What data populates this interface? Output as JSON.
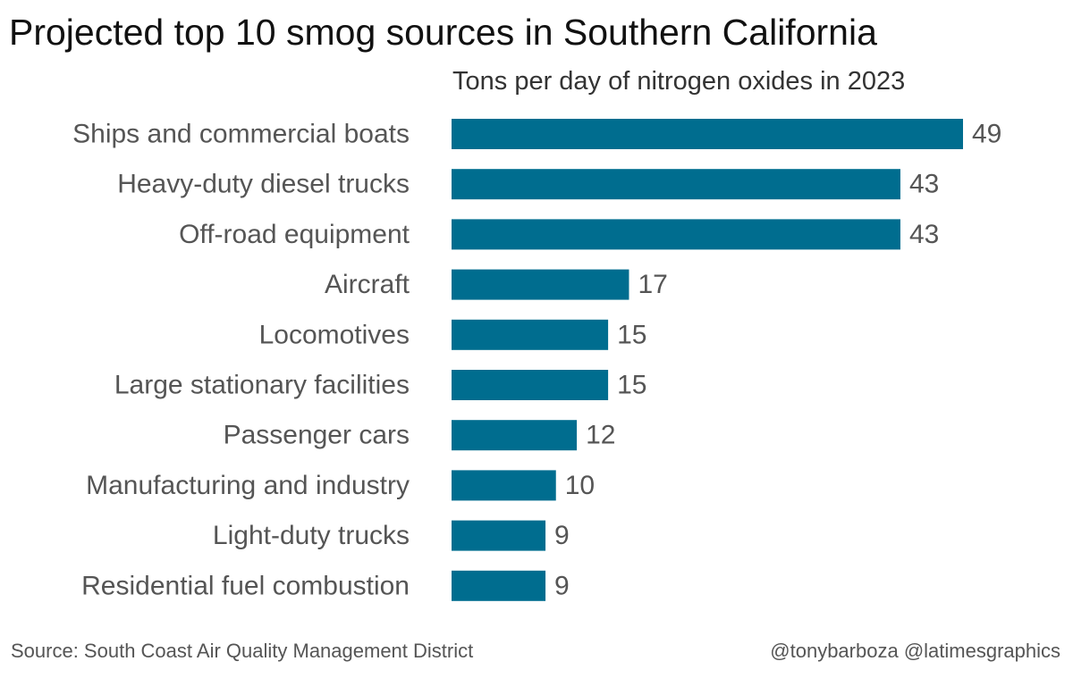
{
  "title": "Projected top 10 smog sources in Southern California",
  "subtitle": "Tons per day of nitrogen oxides in 2023",
  "source": "Source: South Coast Air Quality Management District",
  "credit": "@tonybarboza @latimesgraphics",
  "colors": {
    "bar": "#006d8f",
    "text": "#555555"
  },
  "chart_data": {
    "type": "bar",
    "orientation": "horizontal",
    "categories": [
      "Ships and commercial boats",
      "Heavy-duty diesel trucks",
      "Off-road equipment",
      "Aircraft",
      "Locomotives",
      "Large stationary facilities",
      "Passenger cars",
      "Manufacturing and industry",
      "Light-duty trucks",
      "Residential fuel combustion"
    ],
    "values": [
      49,
      43,
      43,
      17,
      15,
      15,
      12,
      10,
      9,
      9
    ],
    "title": "Projected top 10 smog sources in Southern California",
    "subtitle": "Tons per day of nitrogen oxides in 2023",
    "xlim": [
      0,
      49
    ],
    "grid": false,
    "legend": "none"
  }
}
